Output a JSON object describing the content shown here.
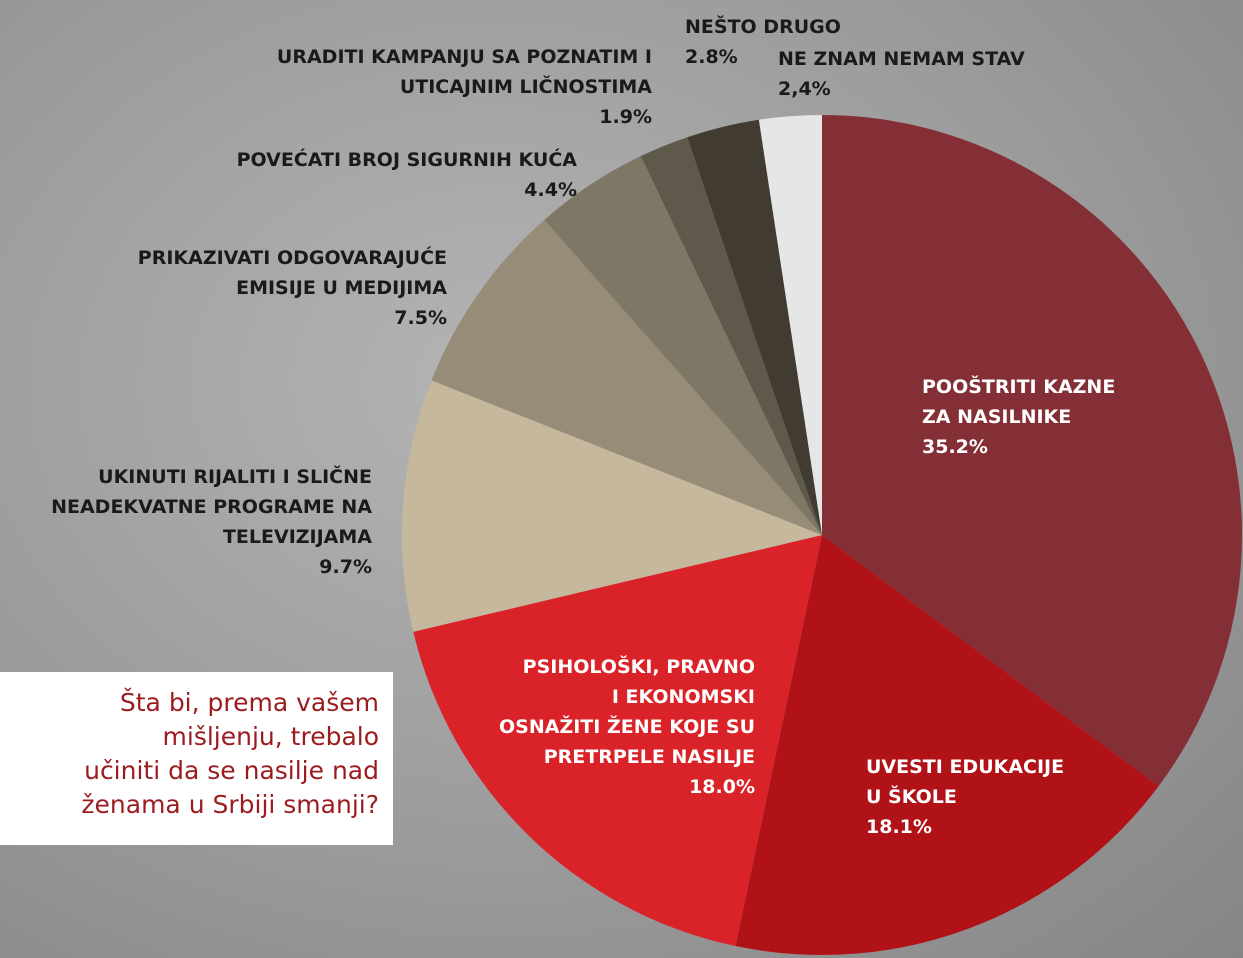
{
  "chart_data": {
    "type": "pie",
    "question": "Šta bi, prema vašem\nmišljenju, trebalo\nučiniti da se nasilje nad\nženama u Srbiji smanji?",
    "categories": [
      "POOŠTRITI KAZNE\nZA NASILNIKE",
      "UVESTI EDUKACIJE\nU ŠKOLE",
      "PSIHOLOŠKI, PRAVNO\nI EKONOMSKI\nOSNAŽITI ŽENE KOJE SU\nPRETRPELE NASILJE",
      "UKINUTI RIJALITI I SLIČNE\nNEADEKVATNE PROGRAME NA\nTELEVIZIJAMA",
      "PRIKAZIVATI ODGOVARAJUĆE\nEMISIJE U MEDIJIMA",
      "POVEĆATI BROJ SIGURNIH KUĆA",
      "URADITI KAMPANJU SA POZNATIM I\nUTICAJNIM LIČNOSTIMA",
      "NEŠTO DRUGO",
      "NE ZNAM NEMAM STAV"
    ],
    "values": [
      35.2,
      18.1,
      18.0,
      9.7,
      7.5,
      4.4,
      1.9,
      2.8,
      2.4
    ],
    "value_labels": [
      "35.2%",
      "18.1%",
      "18.0%",
      "9.7%",
      "7.5%",
      "4.4%",
      "1.9%",
      "2.8%",
      "2,4%"
    ],
    "colors": [
      "#842f36",
      "#b01218",
      "#da2229",
      "#c5b89d",
      "#978c78",
      "#7f7765",
      "#5f594c",
      "#413b32",
      "#e6e6e6"
    ]
  }
}
